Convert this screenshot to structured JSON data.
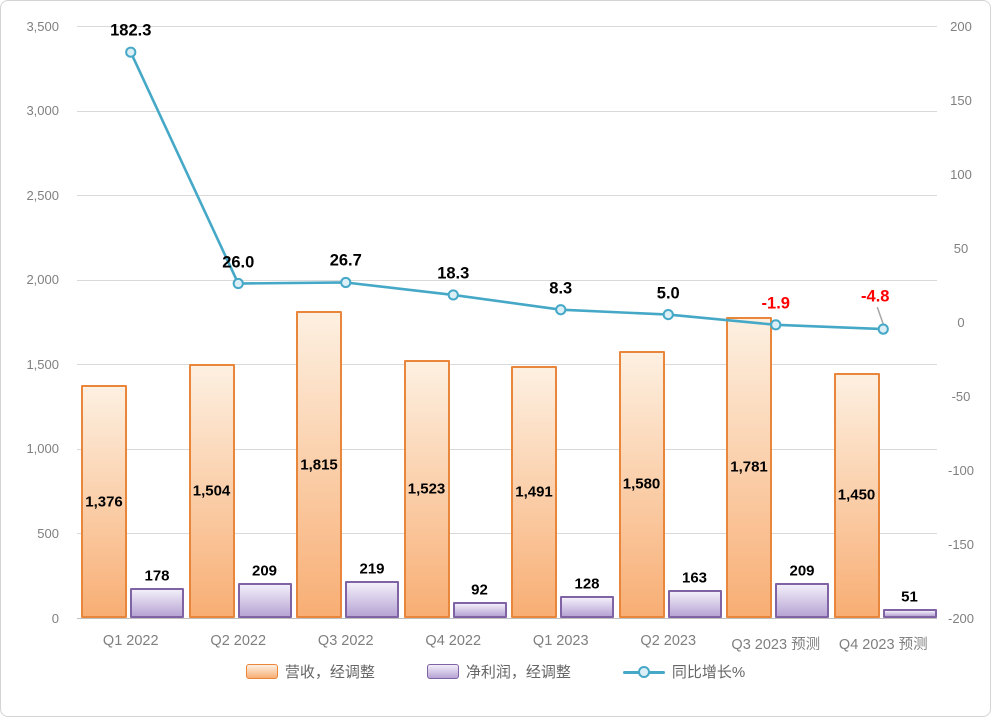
{
  "chart_data": {
    "type": "bar",
    "subtype": "combo-bar-line",
    "title": "",
    "categories": [
      "Q1 2022",
      "Q2 2022",
      "Q3 2022",
      "Q4 2022",
      "Q1 2023",
      "Q2 2023",
      "Q3 2023 预测",
      "Q4 2023 预测"
    ],
    "series": [
      {
        "name": "营收，经调整",
        "chart": "bar",
        "axis": "left",
        "values": [
          1376,
          1504,
          1815,
          1523,
          1491,
          1580,
          1781,
          1450
        ],
        "labels": [
          "1,376",
          "1,504",
          "1,815",
          "1,523",
          "1,491",
          "1,580",
          "1,781",
          "1,450"
        ],
        "border_color": "#E8863B",
        "fill_top": "#FDF0E1",
        "fill_bottom": "#F8AE74"
      },
      {
        "name": "净利润，经调整",
        "chart": "bar",
        "axis": "left",
        "values": [
          178,
          209,
          219,
          92,
          128,
          163,
          209,
          51
        ],
        "labels": [
          "178",
          "209",
          "219",
          "92",
          "128",
          "163",
          "209",
          "51"
        ],
        "border_color": "#7F63A5",
        "fill_top": "#F2EEF9",
        "fill_bottom": "#B7A4D4"
      },
      {
        "name": "同比增长%",
        "chart": "line",
        "axis": "right",
        "values": [
          182.3,
          26.0,
          26.7,
          18.3,
          8.3,
          5.0,
          -1.9,
          -4.8
        ],
        "labels": [
          "182.3",
          "26.0",
          "26.7",
          "18.3",
          "8.3",
          "5.0",
          "-1.9",
          "-4.8"
        ],
        "line_color": "#45A8C7",
        "marker_fill": "#DCEFF7",
        "label_color": "#000000",
        "negative_label_color": "#FF0000",
        "leader_point_index": 7,
        "leader_color": "#A6A6A6"
      }
    ],
    "left_axis": {
      "min": 0,
      "max": 3500,
      "step": 500,
      "ticks_top_to_bottom": [
        "3,500",
        "3,000",
        "2,500",
        "2,000",
        "1,500",
        "1,000",
        "500",
        "0"
      ]
    },
    "right_axis": {
      "min": -200,
      "max": 200,
      "step": 50,
      "ticks_top_to_bottom": [
        "200",
        "150",
        "100",
        "50",
        "0",
        "-50",
        "-100",
        "-150",
        "-200"
      ]
    },
    "grid": {
      "line_color": "#D9D9D9",
      "zero_line_color": "#BFBFBF",
      "legend_position": "bottom"
    },
    "tick_color": "#808080",
    "legend": [
      {
        "label": "营收，经调整",
        "swatch": "bar",
        "border_color": "#E8863B",
        "fill_top": "#FDF0E1",
        "fill_bottom": "#F8AE74"
      },
      {
        "label": "净利润，经调整",
        "swatch": "bar",
        "border_color": "#7F63A5",
        "fill_top": "#F2EEF9",
        "fill_bottom": "#B7A4D4"
      },
      {
        "label": "同比增长%",
        "swatch": "line",
        "line_color": "#45A8C7",
        "marker_fill": "#DCEFF7"
      }
    ]
  }
}
